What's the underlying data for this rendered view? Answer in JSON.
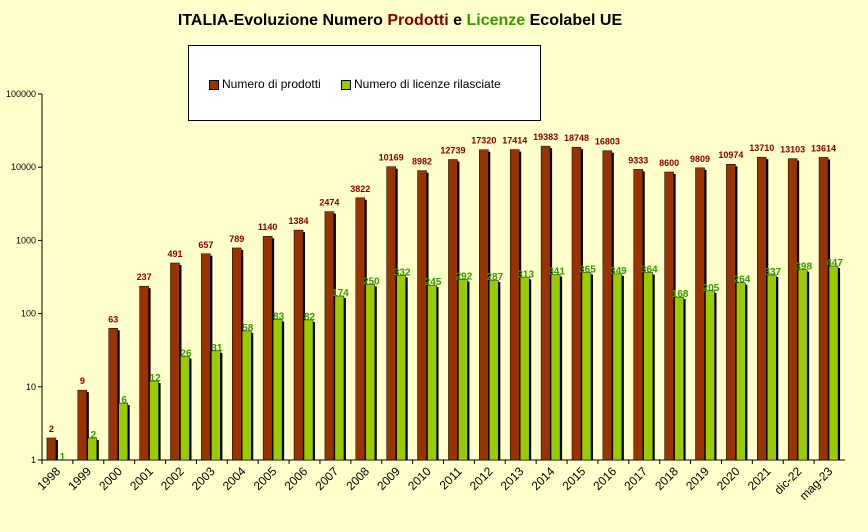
{
  "title": {
    "part1": "ITALIA-Evoluzione Numero ",
    "part2": "Prodotti",
    "part3": " e  ",
    "part4": "Licenze",
    "part5": " Ecolabel UE"
  },
  "colors": {
    "products": "#993300",
    "licenses": "#99cc00",
    "products_label": "#800000",
    "licenses_label": "#339900"
  },
  "chart_data": {
    "type": "bar",
    "title": "ITALIA-Evoluzione Numero Prodotti e  Licenze Ecolabel UE",
    "yscale": "log",
    "ylim": [
      1,
      100000
    ],
    "yticks": [
      "1",
      "10",
      "100",
      "1000",
      "10000",
      "100000"
    ],
    "grid": false,
    "legend_position": "top-center",
    "categories": [
      "1998",
      "1999",
      "2000",
      "2001",
      "2002",
      "2003",
      "2004",
      "2005",
      "2006",
      "2007",
      "2008",
      "2009",
      "2010",
      "2011",
      "2012",
      "2013",
      "2014",
      "2015",
      "2016",
      "2017",
      "2018",
      "2019",
      "2020",
      "2021",
      "dic-22",
      "mag-23"
    ],
    "series": [
      {
        "name": "Numero di prodotti",
        "values": [
          2,
          9,
          63,
          237,
          491,
          657,
          789,
          1140,
          1384,
          2474,
          3822,
          10169,
          8982,
          12739,
          17320,
          17414,
          19383,
          18748,
          16803,
          9333,
          8600,
          9809,
          10974,
          13710,
          13103,
          13614
        ]
      },
      {
        "name": "Numero di licenze rilasciate",
        "values": [
          1,
          2,
          6,
          12,
          26,
          31,
          58,
          83,
          82,
          174,
          250,
          332,
          245,
          292,
          287,
          313,
          341,
          365,
          349,
          364,
          168,
          205,
          264,
          337,
          398,
          447
        ]
      }
    ]
  }
}
